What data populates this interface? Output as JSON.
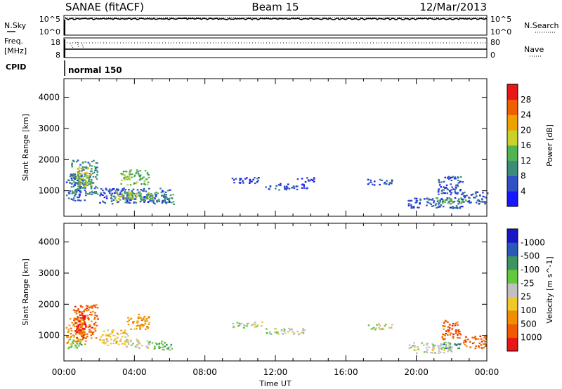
{
  "header": {
    "title": "SANAE (fitACF)",
    "beam": "Beam 15",
    "date": "12/Mar/2013"
  },
  "status_panels": {
    "nsky_label": "N.Sky",
    "nsearch_label": "N.Search",
    "freq_label_1": "Freq.",
    "freq_label_2": "[MHz]",
    "nave_label": "Nave",
    "cpid_label": "CPID",
    "cpid_value": "normal 150",
    "noise_left_ticks": [
      "10^5",
      "10^0"
    ],
    "noise_right_ticks": [
      "10^5",
      "10^0"
    ],
    "freq_left_ticks": [
      "18",
      "8"
    ],
    "freq_right_ticks": [
      "80",
      "0"
    ]
  },
  "chart_data": [
    {
      "type": "heatmap",
      "name": "power",
      "ylabel": "Slant Range [km]",
      "xlabel": "Time UT",
      "ylim": [
        180,
        4600
      ],
      "yticks": [
        "1000",
        "2000",
        "3000",
        "4000"
      ],
      "xticks": [
        "00:00",
        "04:00",
        "08:00",
        "12:00",
        "16:00",
        "20:00",
        "00:00"
      ],
      "colorbar": {
        "label": "Power [dB]",
        "ticks": [
          "4",
          "8",
          "12",
          "16",
          "20",
          "24",
          "28"
        ],
        "colors": [
          "#1818ff",
          "#3050c8",
          "#3c8c78",
          "#50b450",
          "#c8d228",
          "#f0a000",
          "#f06000",
          "#e81818"
        ]
      },
      "regions": [
        {
          "t0": 0.1,
          "t1": 1.2,
          "r0": 700,
          "r1": 1600,
          "level": 1
        },
        {
          "t0": 0.4,
          "t1": 1.9,
          "r0": 900,
          "r1": 2000,
          "level": 2
        },
        {
          "t0": 0.7,
          "t1": 1.5,
          "r0": 1100,
          "r1": 1800,
          "level": 4
        },
        {
          "t0": 2.0,
          "t1": 6.0,
          "r0": 600,
          "r1": 1100,
          "level": 1
        },
        {
          "t0": 2.6,
          "t1": 5.4,
          "r0": 700,
          "r1": 1000,
          "level": 3
        },
        {
          "t0": 3.0,
          "t1": 4.2,
          "r0": 750,
          "r1": 950,
          "level": 4
        },
        {
          "t0": 3.2,
          "t1": 4.8,
          "r0": 1200,
          "r1": 1700,
          "level": 3
        },
        {
          "t0": 5.5,
          "t1": 6.2,
          "r0": 550,
          "r1": 900,
          "level": 2
        },
        {
          "t0": 9.5,
          "t1": 11.2,
          "r0": 1250,
          "r1": 1450,
          "level": 1
        },
        {
          "t0": 11.4,
          "t1": 13.8,
          "r0": 1050,
          "r1": 1250,
          "level": 1
        },
        {
          "t0": 13.2,
          "t1": 14.2,
          "r0": 1300,
          "r1": 1450,
          "level": 1
        },
        {
          "t0": 17.2,
          "t1": 18.6,
          "r0": 1200,
          "r1": 1400,
          "level": 1
        },
        {
          "t0": 19.5,
          "t1": 22.6,
          "r0": 450,
          "r1": 800,
          "level": 1
        },
        {
          "t0": 21.0,
          "t1": 22.8,
          "r0": 600,
          "r1": 800,
          "level": 3
        },
        {
          "t0": 21.2,
          "t1": 22.6,
          "r0": 900,
          "r1": 1500,
          "level": 1
        },
        {
          "t0": 22.5,
          "t1": 24.0,
          "r0": 600,
          "r1": 1000,
          "level": 1
        }
      ]
    },
    {
      "type": "heatmap",
      "name": "velocity",
      "ylabel": "Slant Range [km]",
      "xlabel": "Time UT",
      "ylim": [
        180,
        4600
      ],
      "yticks": [
        "1000",
        "2000",
        "3000",
        "4000"
      ],
      "xticks": [
        "00:00",
        "04:00",
        "08:00",
        "12:00",
        "16:00",
        "20:00",
        "00:00"
      ],
      "colorbar": {
        "label": "Velocity [m s^-1]",
        "ticks": [
          "1000",
          "500",
          "100",
          "25",
          "-25",
          "-100",
          "-500",
          "-1000"
        ],
        "colors": [
          "#1818c8",
          "#2a58b8",
          "#3c9460",
          "#64c83c",
          "#c0c0c0",
          "#f0c828",
          "#f09000",
          "#f05a00",
          "#e81818"
        ]
      },
      "regions": [
        {
          "t0": 0.1,
          "t1": 1.2,
          "r0": 700,
          "r1": 1600,
          "level": 6
        },
        {
          "t0": 0.5,
          "t1": 1.9,
          "r0": 900,
          "r1": 2000,
          "level": 7
        },
        {
          "t0": 0.6,
          "t1": 1.2,
          "r0": 1100,
          "r1": 1700,
          "level": 8
        },
        {
          "t0": 0.2,
          "t1": 1.0,
          "r0": 600,
          "r1": 900,
          "level": 3
        },
        {
          "t0": 2.0,
          "t1": 3.6,
          "r0": 700,
          "r1": 1200,
          "level": 5
        },
        {
          "t0": 3.4,
          "t1": 4.8,
          "r0": 600,
          "r1": 900,
          "level": 4
        },
        {
          "t0": 3.5,
          "t1": 4.8,
          "r0": 1200,
          "r1": 1700,
          "level": 6
        },
        {
          "t0": 4.7,
          "t1": 6.1,
          "r0": 550,
          "r1": 850,
          "level": 3
        },
        {
          "t0": 9.5,
          "t1": 11.2,
          "r0": 1250,
          "r1": 1450,
          "level": 4
        },
        {
          "t0": 11.4,
          "t1": 13.8,
          "r0": 1050,
          "r1": 1250,
          "level": 4
        },
        {
          "t0": 17.2,
          "t1": 18.6,
          "r0": 1200,
          "r1": 1400,
          "level": 4
        },
        {
          "t0": 19.5,
          "t1": 22.0,
          "r0": 450,
          "r1": 800,
          "level": 4
        },
        {
          "t0": 21.5,
          "t1": 22.5,
          "r0": 600,
          "r1": 800,
          "level": 2
        },
        {
          "t0": 21.4,
          "t1": 22.5,
          "r0": 900,
          "r1": 1500,
          "level": 7
        },
        {
          "t0": 22.6,
          "t1": 24.0,
          "r0": 600,
          "r1": 1000,
          "level": 7
        }
      ]
    }
  ]
}
